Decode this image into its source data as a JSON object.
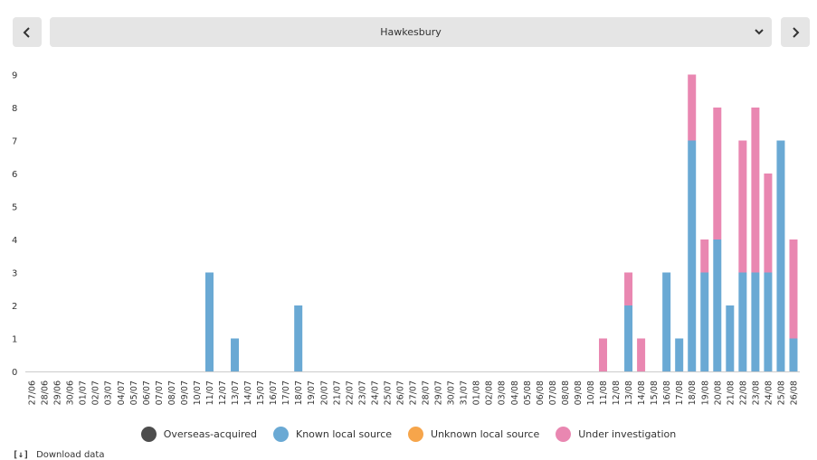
{
  "header": {
    "region": "Hawkesbury",
    "prev_icon": "chevron-left-icon",
    "next_icon": "chevron-right-icon",
    "dropdown_icon": "chevron-down-icon"
  },
  "legend": {
    "overseas": "Overseas-acquired",
    "known": "Known local source",
    "unknown": "Unknown local source",
    "investigation": "Under investigation"
  },
  "download": {
    "icon": "[↓]",
    "label": "Download data"
  },
  "chart_data": {
    "type": "bar",
    "stacked": true,
    "ylim": [
      0,
      9
    ],
    "yticks": [
      0,
      1,
      2,
      3,
      4,
      5,
      6,
      7,
      8,
      9
    ],
    "grid": false,
    "legend_position": "bottom",
    "colors": {
      "Overseas-acquired": "#4d4d4d",
      "Known local source": "#6aa9d4",
      "Unknown local source": "#f6a54b",
      "Under investigation": "#e987b1"
    },
    "categories": [
      "27/06",
      "28/06",
      "29/06",
      "30/06",
      "01/07",
      "02/07",
      "03/07",
      "04/07",
      "05/07",
      "06/07",
      "07/07",
      "08/07",
      "09/07",
      "10/07",
      "11/07",
      "12/07",
      "13/07",
      "14/07",
      "15/07",
      "16/07",
      "17/07",
      "18/07",
      "19/07",
      "20/07",
      "21/07",
      "22/07",
      "23/07",
      "24/07",
      "25/07",
      "26/07",
      "27/07",
      "28/07",
      "29/07",
      "30/07",
      "31/07",
      "01/08",
      "02/08",
      "03/08",
      "04/08",
      "05/08",
      "06/08",
      "07/08",
      "08/08",
      "09/08",
      "10/08",
      "11/08",
      "12/08",
      "13/08",
      "14/08",
      "15/08",
      "16/08",
      "17/08",
      "18/08",
      "19/08",
      "20/08",
      "21/08",
      "22/08",
      "23/08",
      "24/08",
      "25/08",
      "26/08"
    ],
    "series": [
      {
        "name": "Overseas-acquired",
        "values": [
          0,
          0,
          0,
          0,
          0,
          0,
          0,
          0,
          0,
          0,
          0,
          0,
          0,
          0,
          0,
          0,
          0,
          0,
          0,
          0,
          0,
          0,
          0,
          0,
          0,
          0,
          0,
          0,
          0,
          0,
          0,
          0,
          0,
          0,
          0,
          0,
          0,
          0,
          0,
          0,
          0,
          0,
          0,
          0,
          0,
          0,
          0,
          0,
          0,
          0,
          0,
          0,
          0,
          0,
          0,
          0,
          0,
          0,
          0,
          0,
          0
        ]
      },
      {
        "name": "Known local source",
        "values": [
          0,
          0,
          0,
          0,
          0,
          0,
          0,
          0,
          0,
          0,
          0,
          0,
          0,
          0,
          3,
          0,
          1,
          0,
          0,
          0,
          0,
          2,
          0,
          0,
          0,
          0,
          0,
          0,
          0,
          0,
          0,
          0,
          0,
          0,
          0,
          0,
          0,
          0,
          0,
          0,
          0,
          0,
          0,
          0,
          0,
          0,
          0,
          2,
          0,
          0,
          3,
          1,
          7,
          3,
          4,
          2,
          3,
          3,
          3,
          7,
          1
        ]
      },
      {
        "name": "Unknown local source",
        "values": [
          0,
          0,
          0,
          0,
          0,
          0,
          0,
          0,
          0,
          0,
          0,
          0,
          0,
          0,
          0,
          0,
          0,
          0,
          0,
          0,
          0,
          0,
          0,
          0,
          0,
          0,
          0,
          0,
          0,
          0,
          0,
          0,
          0,
          0,
          0,
          0,
          0,
          0,
          0,
          0,
          0,
          0,
          0,
          0,
          0,
          0,
          0,
          0,
          0,
          0,
          0,
          0,
          0,
          0,
          0,
          0,
          0,
          0,
          0,
          0,
          0
        ]
      },
      {
        "name": "Under investigation",
        "values": [
          0,
          0,
          0,
          0,
          0,
          0,
          0,
          0,
          0,
          0,
          0,
          0,
          0,
          0,
          0,
          0,
          0,
          0,
          0,
          0,
          0,
          0,
          0,
          0,
          0,
          0,
          0,
          0,
          0,
          0,
          0,
          0,
          0,
          0,
          0,
          0,
          0,
          0,
          0,
          0,
          0,
          0,
          0,
          0,
          0,
          1,
          0,
          1,
          1,
          0,
          0,
          0,
          2,
          1,
          4,
          0,
          4,
          5,
          3,
          0,
          3
        ]
      }
    ]
  }
}
